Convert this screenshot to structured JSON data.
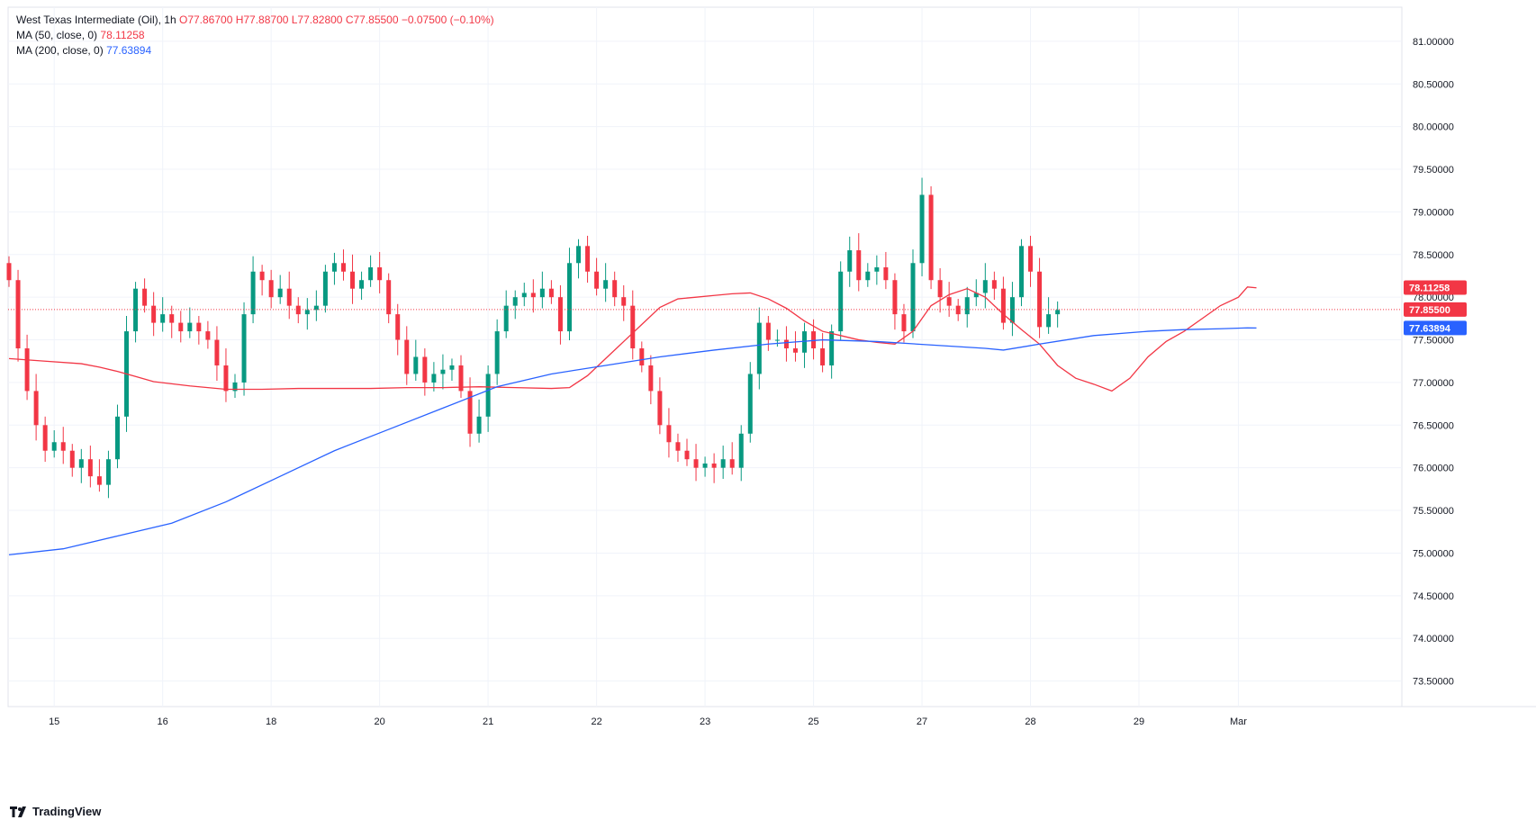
{
  "legend": {
    "title": "West Texas Intermediate (Oil), 1h",
    "ohlc": "O77.86700  H77.88700  L77.82800  C77.85500  −0.07500  (−0.10%)",
    "ma50_label": "MA (50, close, 0)",
    "ma50_value": "78.11258",
    "ma200_label": "MA (200, close, 0)",
    "ma200_value": "77.63894"
  },
  "brand": {
    "name": "TradingView",
    "logo_icon": "tradingview-logo-icon"
  },
  "colors": {
    "up": "#089981",
    "down": "#f23645",
    "ma50": "#f23645",
    "ma200": "#2962ff",
    "grid": "#f0f3fa"
  },
  "chart_data": {
    "type": "candlestick",
    "ylim": [
      73.2,
      81.4
    ],
    "y_ticks": [
      "73.50000",
      "74.00000",
      "74.50000",
      "75.00000",
      "75.50000",
      "76.00000",
      "76.50000",
      "77.00000",
      "77.50000",
      "78.00000",
      "78.50000",
      "79.00000",
      "79.50000",
      "80.00000",
      "80.50000",
      "81.00000"
    ],
    "x_ticks": [
      {
        "label": "15",
        "bar": 5
      },
      {
        "label": "16",
        "bar": 17
      },
      {
        "label": "18",
        "bar": 29
      },
      {
        "label": "20",
        "bar": 41
      },
      {
        "label": "21",
        "bar": 53
      },
      {
        "label": "22",
        "bar": 65
      },
      {
        "label": "23",
        "bar": 77
      },
      {
        "label": "25",
        "bar": 89
      },
      {
        "label": "27",
        "bar": 101
      },
      {
        "label": "28",
        "bar": 113
      },
      {
        "label": "29",
        "bar": 125
      },
      {
        "label": "Mar",
        "bar": 136
      }
    ],
    "last_price": 77.855,
    "price_labels": [
      {
        "text": "78.11258",
        "value": 78.11258,
        "color": "#f23645"
      },
      {
        "text": "77.85500",
        "value": 77.855,
        "color": "#f23645"
      },
      {
        "text": "77.63894",
        "value": 77.63894,
        "color": "#2962ff"
      }
    ],
    "closes": [
      78.2,
      77.4,
      76.9,
      76.5,
      76.2,
      76.3,
      76.2,
      76.0,
      76.1,
      75.9,
      75.8,
      76.1,
      76.6,
      77.6,
      78.1,
      77.9,
      77.7,
      77.8,
      77.7,
      77.6,
      77.7,
      77.6,
      77.5,
      77.2,
      76.9,
      77.0,
      77.8,
      78.3,
      78.2,
      78.0,
      78.1,
      77.9,
      77.8,
      77.85,
      77.9,
      78.3,
      78.4,
      78.3,
      78.1,
      78.2,
      78.35,
      78.2,
      77.8,
      77.5,
      77.1,
      77.3,
      77.0,
      77.1,
      77.15,
      77.2,
      76.9,
      76.4,
      76.6,
      77.1,
      77.6,
      77.9,
      78.0,
      78.05,
      78.0,
      78.1,
      78.0,
      77.6,
      78.4,
      78.6,
      78.3,
      78.1,
      78.2,
      78.0,
      77.9,
      77.4,
      77.2,
      76.9,
      76.5,
      76.3,
      76.2,
      76.1,
      76.0,
      76.05,
      76.0,
      76.1,
      76.0,
      76.4,
      77.1,
      77.7,
      77.5,
      77.5,
      77.4,
      77.35,
      77.6,
      77.4,
      77.2,
      77.6,
      78.3,
      78.55,
      78.2,
      78.3,
      78.35,
      78.2,
      77.8,
      77.6,
      78.4,
      79.2,
      78.2,
      78.0,
      77.9,
      77.8,
      78.0,
      78.05,
      78.2,
      78.1,
      77.7,
      78.0,
      78.6,
      78.3,
      77.65,
      77.8,
      77.85
    ],
    "ma50": [
      77.28,
      77.25,
      77.22,
      77.18,
      77.13,
      77.07,
      77.01,
      76.96,
      76.92,
      76.92,
      76.93,
      76.93,
      76.93,
      76.94,
      76.94,
      76.95,
      76.94,
      76.93,
      76.94,
      77.08,
      77.28,
      77.48,
      77.68,
      77.88,
      77.98,
      78.0,
      78.02,
      78.04,
      78.05,
      77.98,
      77.87,
      77.72,
      77.6,
      77.55,
      77.5,
      77.47,
      77.45,
      77.6,
      77.9,
      78.03,
      78.1,
      78.0,
      77.8,
      77.62,
      77.45,
      77.2,
      77.05,
      76.98,
      76.9,
      77.05,
      77.3,
      77.48,
      77.6,
      77.75,
      77.9,
      78.0,
      78.12,
      78.11
    ],
    "ma50_bars": [
      0,
      4,
      8,
      10,
      12,
      14,
      16,
      20,
      24,
      28,
      32,
      36,
      40,
      44,
      48,
      52,
      56,
      60,
      62,
      64,
      66,
      68,
      70,
      72,
      74,
      76,
      78,
      80,
      82,
      84,
      86,
      88,
      90,
      92,
      94,
      96,
      98,
      100,
      102,
      104,
      106,
      108,
      110,
      112,
      114,
      116,
      118,
      120,
      122,
      124,
      126,
      128,
      130,
      132,
      134,
      136,
      137,
      138
    ],
    "ma200": [
      74.98,
      75.05,
      75.2,
      75.35,
      75.6,
      75.9,
      76.2,
      76.45,
      76.7,
      76.95,
      77.1,
      77.2,
      77.3,
      77.38,
      77.45,
      77.5,
      77.48,
      77.44,
      77.4,
      77.38,
      77.45,
      77.55,
      77.6,
      77.62,
      77.63,
      77.64,
      77.639
    ],
    "ma200_bars": [
      0,
      6,
      12,
      18,
      24,
      30,
      36,
      42,
      48,
      54,
      60,
      66,
      72,
      78,
      84,
      90,
      96,
      102,
      108,
      110,
      114,
      120,
      126,
      130,
      134,
      137,
      138
    ]
  }
}
